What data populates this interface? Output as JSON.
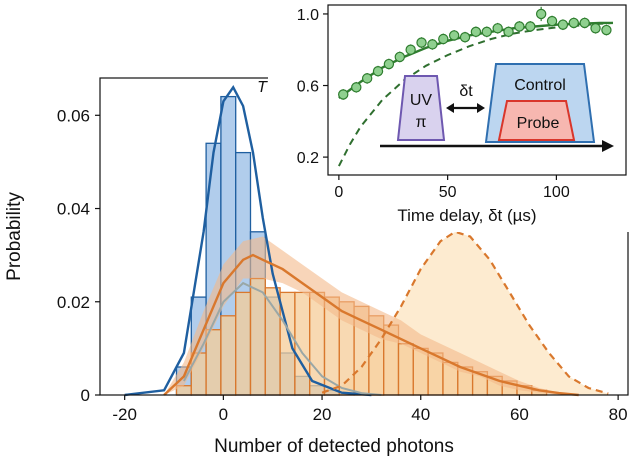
{
  "chart_data": [
    {
      "type": "bar",
      "xlabel": "Number of detected photons",
      "ylabel": "Probability",
      "corner_label": "T",
      "xlim": [
        -25,
        82
      ],
      "ylim": [
        0,
        0.068
      ],
      "xticks": [
        -20,
        0,
        20,
        40,
        60,
        80
      ],
      "yticks": [
        0,
        0.02,
        0.04,
        0.06
      ],
      "ytick_labels": [
        "0",
        "0.02",
        "0.04",
        "0.06"
      ],
      "colors": {
        "blue": "#1f5fa0",
        "blue_fill": "#a9c8ea",
        "orange": "#d9782d",
        "orange_fill": "#f6cc98",
        "orange_band": "#f3b98a",
        "gray": "#9aa7a6",
        "reference_fill": "#fdebd0"
      },
      "series": [
        {
          "kind": "histogram",
          "color": "blue",
          "bin_width": 3,
          "x": [
            -8,
            -5,
            -2,
            1,
            4,
            7,
            10,
            13,
            16,
            19,
            22
          ],
          "values": [
            0.006,
            0.021,
            0.054,
            0.064,
            0.052,
            0.035,
            0.021,
            0.009,
            0.004,
            0.002,
            0.001
          ]
        },
        {
          "kind": "histogram",
          "color": "orange",
          "bin_width": 3,
          "x": [
            -8,
            -5,
            -2,
            1,
            4,
            7,
            10,
            13,
            16,
            19,
            22,
            25,
            28,
            31,
            34,
            37,
            40,
            43,
            46,
            49,
            52,
            55,
            58,
            61,
            64
          ],
          "values": [
            0.002,
            0.009,
            0.014,
            0.017,
            0.022,
            0.025,
            0.023,
            0.022,
            0.022,
            0.022,
            0.021,
            0.02,
            0.019,
            0.017,
            0.015,
            0.011,
            0.01,
            0.009,
            0.007,
            0.006,
            0.005,
            0.004,
            0.003,
            0.002,
            0.001
          ]
        },
        {
          "kind": "fit",
          "color": "blue",
          "x": [
            -20,
            -12,
            -8,
            -4,
            -2,
            0,
            2,
            4,
            6,
            8,
            10,
            14,
            18,
            24,
            30
          ],
          "values": [
            0,
            0.001,
            0.009,
            0.035,
            0.052,
            0.063,
            0.066,
            0.062,
            0.052,
            0.038,
            0.026,
            0.01,
            0.003,
            0.0005,
            0
          ]
        },
        {
          "kind": "fit",
          "color": "gray",
          "x": [
            -8,
            -4,
            0,
            4,
            8,
            12,
            16,
            20,
            24,
            28,
            32
          ],
          "values": [
            0.003,
            0.011,
            0.02,
            0.024,
            0.022,
            0.016,
            0.009,
            0.004,
            0.0015,
            0.0004,
            0
          ]
        },
        {
          "kind": "fit_band",
          "color": "orange_band",
          "x": [
            -12,
            -8,
            -4,
            0,
            4,
            8,
            12,
            16,
            20,
            24,
            28,
            32,
            36,
            40,
            44,
            48,
            52,
            56,
            60,
            64,
            68
          ],
          "values": [
            0,
            0.007,
            0.018,
            0.028,
            0.033,
            0.034,
            0.031,
            0.028,
            0.025,
            0.022,
            0.02,
            0.018,
            0.016,
            0.013,
            0.011,
            0.009,
            0.007,
            0.005,
            0.003,
            0.0015,
            0.0005
          ],
          "lower": [
            0,
            0.002,
            0.01,
            0.019,
            0.025,
            0.025,
            0.024,
            0.022,
            0.019,
            0.016,
            0.014,
            0.012,
            0.011,
            0.009,
            0.007,
            0.005,
            0.004,
            0.002,
            0.001,
            0.0005,
            0
          ]
        },
        {
          "kind": "fit",
          "color": "orange",
          "x": [
            -12,
            -8,
            -4,
            0,
            4,
            6,
            8,
            12,
            16,
            20,
            24,
            28,
            32,
            36,
            40,
            44,
            48,
            52,
            56,
            60,
            64,
            68,
            72
          ],
          "values": [
            0,
            0.004,
            0.014,
            0.024,
            0.029,
            0.03,
            0.029,
            0.027,
            0.024,
            0.021,
            0.018,
            0.016,
            0.014,
            0.012,
            0.01,
            0.008,
            0.006,
            0.0045,
            0.003,
            0.002,
            0.001,
            0.0004,
            0
          ]
        },
        {
          "kind": "reference",
          "color": "orange",
          "x": [
            20,
            24,
            28,
            32,
            36,
            40,
            44,
            47,
            50,
            54,
            58,
            62,
            66,
            70,
            74,
            78
          ],
          "values": [
            0.0005,
            0.002,
            0.006,
            0.012,
            0.019,
            0.027,
            0.033,
            0.035,
            0.034,
            0.029,
            0.022,
            0.015,
            0.009,
            0.004,
            0.0015,
            0.0003
          ]
        }
      ]
    },
    {
      "type": "scatter",
      "xlabel": "Time delay, δt (µs)",
      "xlim": [
        -5,
        132
      ],
      "ylim": [
        0.1,
        1.05
      ],
      "xticks": [
        0,
        50,
        100
      ],
      "yticks": [
        0.2,
        0.6,
        1.0
      ],
      "ytick_labels": [
        "0.2",
        "0.6",
        "1.0"
      ],
      "colors": {
        "green": "#2f7d2f",
        "green_fill": "#8fd08f",
        "dashed": "#2f6f2f"
      },
      "series": [
        {
          "kind": "points",
          "x": [
            2,
            8,
            13,
            18,
            23,
            28,
            33,
            38,
            43,
            48,
            53,
            58,
            63,
            68,
            73,
            78,
            83,
            88,
            93,
            98,
            103,
            108,
            113,
            118,
            123
          ],
          "values": [
            0.55,
            0.59,
            0.64,
            0.68,
            0.72,
            0.76,
            0.8,
            0.84,
            0.83,
            0.86,
            0.88,
            0.87,
            0.9,
            0.9,
            0.92,
            0.9,
            0.93,
            0.93,
            1.0,
            0.96,
            0.94,
            0.95,
            0.95,
            0.92,
            0.91
          ],
          "errors": [
            0.03,
            0.03,
            0.03,
            0.03,
            0.03,
            0.03,
            0.03,
            0.03,
            0.03,
            0.03,
            0.03,
            0.03,
            0.03,
            0.03,
            0.03,
            0.03,
            0.03,
            0.03,
            0.04,
            0.03,
            0.03,
            0.03,
            0.03,
            0.03,
            0.03
          ]
        },
        {
          "kind": "fit",
          "x": [
            0,
            10,
            20,
            30,
            40,
            50,
            60,
            70,
            80,
            90,
            100,
            110,
            120,
            126
          ],
          "values": [
            0.53,
            0.62,
            0.7,
            0.76,
            0.81,
            0.85,
            0.88,
            0.9,
            0.92,
            0.93,
            0.94,
            0.945,
            0.95,
            0.95
          ]
        },
        {
          "kind": "dashed",
          "x": [
            0,
            5,
            10,
            20,
            30,
            40,
            50,
            60,
            70,
            80,
            90,
            100,
            110,
            120,
            126
          ],
          "values": [
            0.15,
            0.27,
            0.37,
            0.52,
            0.63,
            0.71,
            0.77,
            0.82,
            0.86,
            0.89,
            0.91,
            0.925,
            0.935,
            0.945,
            0.95
          ]
        }
      ],
      "schematic": {
        "uv_label": "UV",
        "pi_label": "π",
        "delay_label": "δt",
        "control_label": "Control",
        "probe_label": "Probe",
        "colors": {
          "uv_fill": "#d9d2ee",
          "uv_stroke": "#6e58b0",
          "control_fill": "#bcd6f0",
          "control_stroke": "#2f6fb0",
          "probe_fill": "#f7b7b0",
          "probe_stroke": "#d9362b"
        }
      }
    }
  ]
}
